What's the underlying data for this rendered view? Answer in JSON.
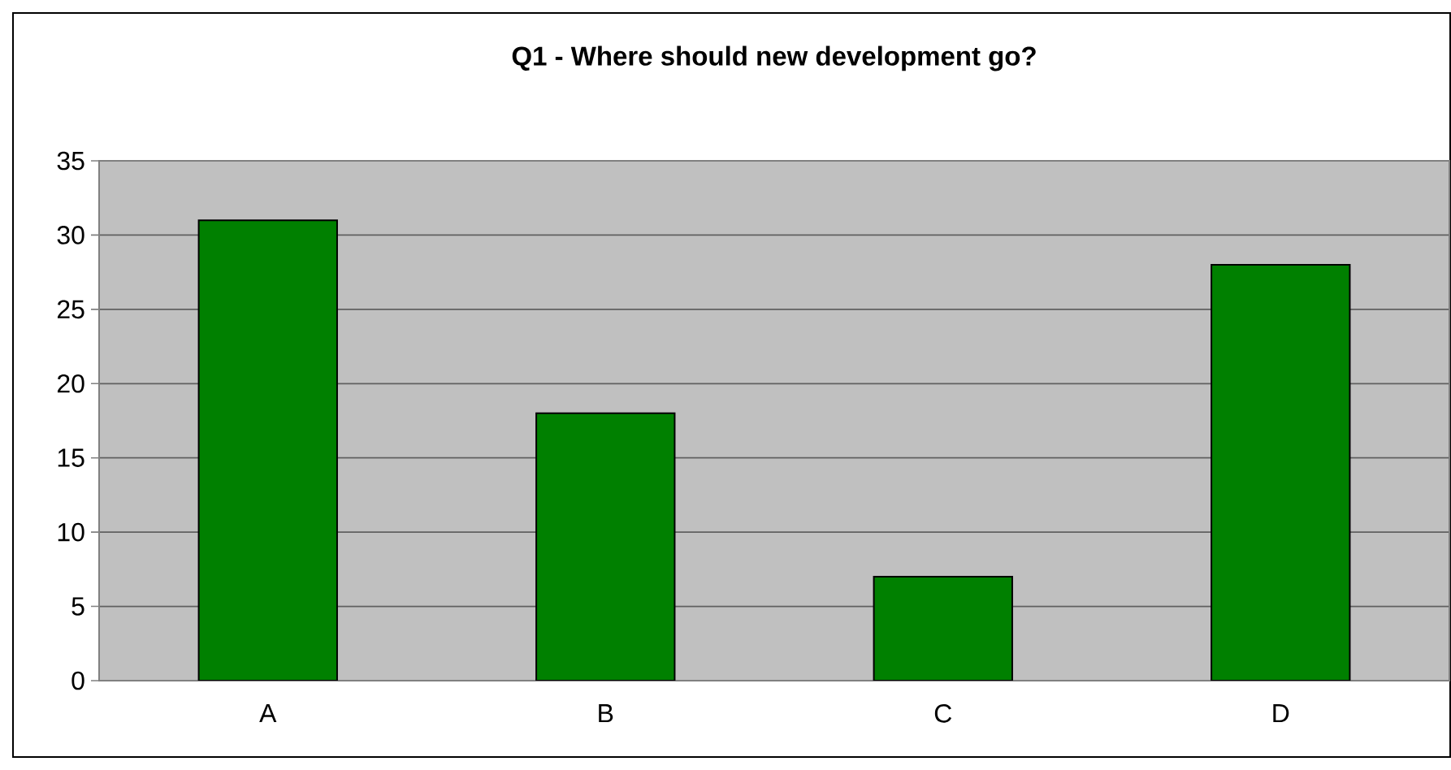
{
  "chart_data": {
    "type": "bar",
    "title": "Q1 - Where should new development go?",
    "categories": [
      "A",
      "B",
      "C",
      "D"
    ],
    "values": [
      31,
      18,
      7,
      28
    ],
    "color": "#008000",
    "ylim": [
      0,
      35
    ],
    "yticks": [
      0,
      5,
      10,
      15,
      20,
      25,
      30,
      35
    ],
    "grid": "y"
  }
}
